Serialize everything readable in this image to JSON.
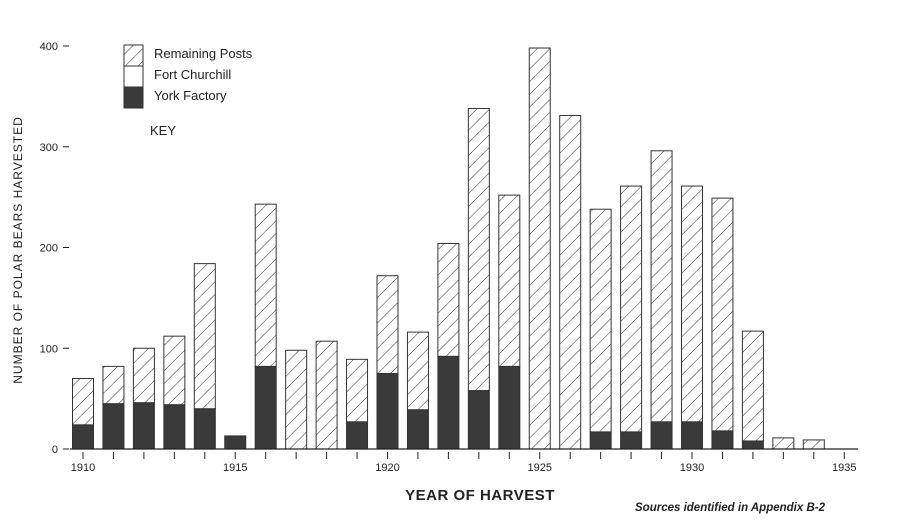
{
  "chart_data": {
    "type": "bar",
    "stacked": true,
    "title": "",
    "xlabel": "YEAR OF HARVEST",
    "ylabel": "NUMBER OF POLAR BEARS HARVESTED",
    "ylim": [
      0,
      400
    ],
    "yticks": [
      "0",
      "100",
      "200",
      "300",
      "400"
    ],
    "xticks": [
      "1910",
      "1915",
      "1920",
      "1925",
      "1930",
      "1935"
    ],
    "categories": [
      1910,
      1911,
      1912,
      1913,
      1914,
      1915,
      1916,
      1917,
      1918,
      1919,
      1920,
      1921,
      1922,
      1923,
      1924,
      1925,
      1926,
      1927,
      1928,
      1929,
      1930,
      1931,
      1932,
      1933,
      1934
    ],
    "series": [
      {
        "name": "York Factory",
        "pattern": "dark",
        "values": [
          24,
          45,
          46,
          44,
          40,
          13,
          82,
          0,
          0,
          27,
          75,
          39,
          92,
          58,
          82,
          0,
          0,
          17,
          17,
          27,
          27,
          18,
          8,
          0,
          0
        ]
      },
      {
        "name": "Fort Churchill",
        "pattern": "white",
        "values": [
          0,
          0,
          0,
          0,
          0,
          0,
          0,
          0,
          0,
          0,
          0,
          0,
          0,
          0,
          0,
          0,
          0,
          0,
          0,
          0,
          0,
          0,
          0,
          0,
          0
        ]
      },
      {
        "name": "Remaining Posts",
        "pattern": "hatched",
        "values": [
          46,
          37,
          54,
          68,
          144,
          0,
          161,
          98,
          107,
          62,
          97,
          77,
          112,
          280,
          170,
          398,
          331,
          221,
          244,
          269,
          234,
          231,
          109,
          11,
          9
        ]
      }
    ],
    "legend": {
      "title": "KEY",
      "placement": "top-left",
      "entries": [
        "Remaining Posts",
        "Fort Churchill",
        "York Factory"
      ]
    },
    "annotation": "Sources identified in Appendix B-2"
  }
}
